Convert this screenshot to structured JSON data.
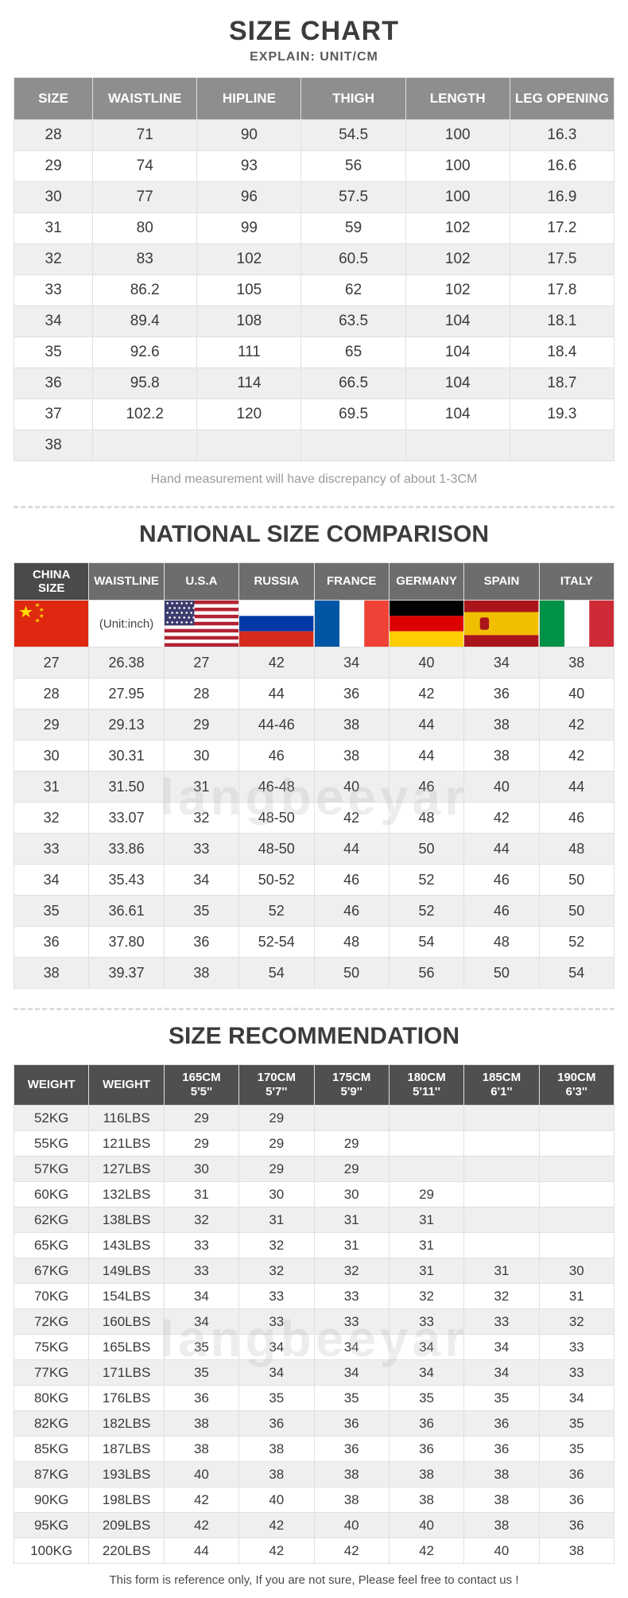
{
  "page": {
    "watermark": "langbeeyar",
    "footer": "This form is reference only, If you are not sure, Please feel free to contact us !"
  },
  "size_chart": {
    "title": "SIZE CHART",
    "subtitle": "EXPLAIN: UNIT/CM",
    "note": "Hand measurement will have discrepancy of about 1-3CM",
    "columns": [
      "SIZE",
      "WAISTLINE",
      "HIPLINE",
      "THIGH",
      "LENGTH",
      "LEG OPENING"
    ],
    "rows": [
      [
        "28",
        "71",
        "90",
        "54.5",
        "100",
        "16.3"
      ],
      [
        "29",
        "74",
        "93",
        "56",
        "100",
        "16.6"
      ],
      [
        "30",
        "77",
        "96",
        "57.5",
        "100",
        "16.9"
      ],
      [
        "31",
        "80",
        "99",
        "59",
        "102",
        "17.2"
      ],
      [
        "32",
        "83",
        "102",
        "60.5",
        "102",
        "17.5"
      ],
      [
        "33",
        "86.2",
        "105",
        "62",
        "102",
        "17.8"
      ],
      [
        "34",
        "89.4",
        "108",
        "63.5",
        "104",
        "18.1"
      ],
      [
        "35",
        "92.6",
        "111",
        "65",
        "104",
        "18.4"
      ],
      [
        "36",
        "95.8",
        "114",
        "66.5",
        "104",
        "18.7"
      ],
      [
        "37",
        "102.2",
        "120",
        "69.5",
        "104",
        "19.3"
      ],
      [
        "38",
        "",
        "",
        "",
        "",
        ""
      ]
    ]
  },
  "national_comparison": {
    "title": "NATIONAL SIZE COMPARISON",
    "unit_note": "(Unit:inch)",
    "columns": [
      {
        "label": "CHINA\nSIZE",
        "flag": "china"
      },
      {
        "label": "WAISTLINE",
        "flag": "unit"
      },
      {
        "label": "U.S.A",
        "flag": "usa"
      },
      {
        "label": "RUSSIA",
        "flag": "russia"
      },
      {
        "label": "FRANCE",
        "flag": "france"
      },
      {
        "label": "GERMANY",
        "flag": "germany"
      },
      {
        "label": "SPAIN",
        "flag": "spain"
      },
      {
        "label": "ITALY",
        "flag": "italy"
      }
    ],
    "rows": [
      [
        "27",
        "26.38",
        "27",
        "42",
        "34",
        "40",
        "34",
        "38"
      ],
      [
        "28",
        "27.95",
        "28",
        "44",
        "36",
        "42",
        "36",
        "40"
      ],
      [
        "29",
        "29.13",
        "29",
        "44-46",
        "38",
        "44",
        "38",
        "42"
      ],
      [
        "30",
        "30.31",
        "30",
        "46",
        "38",
        "44",
        "38",
        "42"
      ],
      [
        "31",
        "31.50",
        "31",
        "46-48",
        "40",
        "46",
        "40",
        "44"
      ],
      [
        "32",
        "33.07",
        "32",
        "48-50",
        "42",
        "48",
        "42",
        "46"
      ],
      [
        "33",
        "33.86",
        "33",
        "48-50",
        "44",
        "50",
        "44",
        "48"
      ],
      [
        "34",
        "35.43",
        "34",
        "50-52",
        "46",
        "52",
        "46",
        "50"
      ],
      [
        "35",
        "36.61",
        "35",
        "52",
        "46",
        "52",
        "46",
        "50"
      ],
      [
        "36",
        "37.80",
        "36",
        "52-54",
        "48",
        "54",
        "48",
        "52"
      ],
      [
        "38",
        "39.37",
        "38",
        "54",
        "50",
        "56",
        "50",
        "54"
      ]
    ]
  },
  "size_recommendation": {
    "title": "SIZE RECOMMENDATION",
    "columns": [
      "WEIGHT",
      "WEIGHT",
      "165CM\n5'5''",
      "170CM\n5'7''",
      "175CM\n5'9''",
      "180CM\n5'11''",
      "185CM\n6'1''",
      "190CM\n6'3''"
    ],
    "rows": [
      [
        "52KG",
        "116LBS",
        "29",
        "29",
        "",
        "",
        "",
        ""
      ],
      [
        "55KG",
        "121LBS",
        "29",
        "29",
        "29",
        "",
        "",
        ""
      ],
      [
        "57KG",
        "127LBS",
        "30",
        "29",
        "29",
        "",
        "",
        ""
      ],
      [
        "60KG",
        "132LBS",
        "31",
        "30",
        "30",
        "29",
        "",
        ""
      ],
      [
        "62KG",
        "138LBS",
        "32",
        "31",
        "31",
        "31",
        "",
        ""
      ],
      [
        "65KG",
        "143LBS",
        "33",
        "32",
        "31",
        "31",
        "",
        ""
      ],
      [
        "67KG",
        "149LBS",
        "33",
        "32",
        "32",
        "31",
        "31",
        "30"
      ],
      [
        "70KG",
        "154LBS",
        "34",
        "33",
        "33",
        "32",
        "32",
        "31"
      ],
      [
        "72KG",
        "160LBS",
        "34",
        "33",
        "33",
        "33",
        "33",
        "32"
      ],
      [
        "75KG",
        "165LBS",
        "35",
        "34",
        "34",
        "34",
        "34",
        "33"
      ],
      [
        "77KG",
        "171LBS",
        "35",
        "34",
        "34",
        "34",
        "34",
        "33"
      ],
      [
        "80KG",
        "176LBS",
        "36",
        "35",
        "35",
        "35",
        "35",
        "34"
      ],
      [
        "82KG",
        "182LBS",
        "38",
        "36",
        "36",
        "36",
        "36",
        "35"
      ],
      [
        "85KG",
        "187LBS",
        "38",
        "38",
        "36",
        "36",
        "36",
        "35"
      ],
      [
        "87KG",
        "193LBS",
        "40",
        "38",
        "38",
        "38",
        "38",
        "36"
      ],
      [
        "90KG",
        "198LBS",
        "42",
        "40",
        "38",
        "38",
        "38",
        "36"
      ],
      [
        "95KG",
        "209LBS",
        "42",
        "42",
        "40",
        "40",
        "38",
        "36"
      ],
      [
        "100KG",
        "220LBS",
        "44",
        "42",
        "42",
        "42",
        "40",
        "38"
      ]
    ]
  },
  "colors": {
    "table1_header_bg": "#8e8e8e",
    "table2_header_bg": "#6d6d6d",
    "table2_header_first_bg": "#4a4a4a",
    "table3_header_bg": "#4f4f4f",
    "row_stripe_bg": "#efefef",
    "title_text": "#3c3c3c"
  }
}
